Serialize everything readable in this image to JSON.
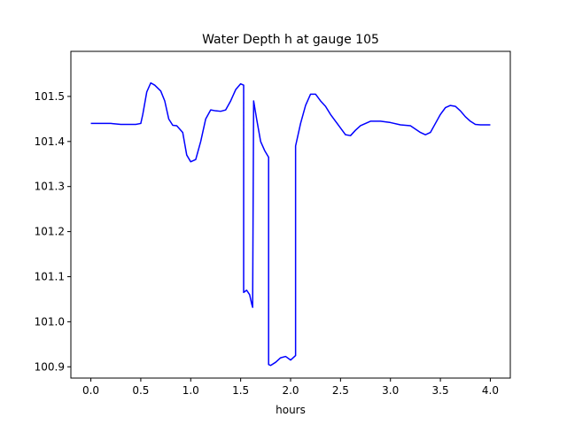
{
  "chart_data": {
    "type": "line",
    "title": "Water Depth h at gauge 105",
    "xlabel": "hours",
    "ylabel": "",
    "xlim": [
      -0.2,
      4.2
    ],
    "ylim": [
      100.875,
      101.6
    ],
    "x_ticks": [
      0.0,
      0.5,
      1.0,
      1.5,
      2.0,
      2.5,
      3.0,
      3.5,
      4.0
    ],
    "x_tick_labels": [
      "0.0",
      "0.5",
      "1.0",
      "1.5",
      "2.0",
      "2.5",
      "3.0",
      "3.5",
      "4.0"
    ],
    "y_ticks": [
      100.9,
      101.0,
      101.1,
      101.2,
      101.3,
      101.4,
      101.5
    ],
    "y_tick_labels": [
      "100.9",
      "101.0",
      "101.1",
      "101.2",
      "101.3",
      "101.4",
      "101.5"
    ],
    "grid": false,
    "series": [
      {
        "color": "#0000ff",
        "x": [
          0.0,
          0.2,
          0.3,
          0.45,
          0.5,
          0.52,
          0.56,
          0.6,
          0.64,
          0.7,
          0.74,
          0.78,
          0.82,
          0.86,
          0.92,
          0.96,
          1.0,
          1.05,
          1.1,
          1.15,
          1.2,
          1.25,
          1.3,
          1.35,
          1.4,
          1.45,
          1.5,
          1.53,
          1.53,
          1.56,
          1.59,
          1.61,
          1.62,
          1.63,
          1.66,
          1.7,
          1.74,
          1.78,
          1.78,
          1.8,
          1.85,
          1.9,
          1.95,
          2.0,
          2.05,
          2.05,
          2.1,
          2.15,
          2.2,
          2.25,
          2.3,
          2.35,
          2.4,
          2.45,
          2.5,
          2.55,
          2.6,
          2.65,
          2.7,
          2.8,
          2.9,
          3.0,
          3.1,
          3.2,
          3.3,
          3.35,
          3.4,
          3.45,
          3.5,
          3.55,
          3.6,
          3.65,
          3.7,
          3.75,
          3.8,
          3.85,
          3.9,
          3.95,
          4.0
        ],
        "y": [
          101.44,
          101.44,
          101.438,
          101.438,
          101.44,
          101.46,
          101.51,
          101.53,
          101.525,
          101.512,
          101.49,
          101.45,
          101.436,
          101.435,
          101.42,
          101.37,
          101.355,
          101.36,
          101.4,
          101.45,
          101.47,
          101.468,
          101.467,
          101.47,
          101.49,
          101.515,
          101.528,
          101.525,
          101.065,
          101.07,
          101.06,
          101.04,
          101.032,
          101.49,
          101.45,
          101.4,
          101.38,
          101.365,
          100.905,
          100.903,
          100.91,
          100.92,
          100.923,
          100.915,
          100.925,
          101.39,
          101.44,
          101.48,
          101.505,
          101.505,
          101.49,
          101.478,
          101.46,
          101.445,
          101.43,
          101.415,
          101.413,
          101.425,
          101.435,
          101.445,
          101.445,
          101.442,
          101.437,
          101.435,
          101.42,
          101.415,
          101.42,
          101.44,
          101.46,
          101.475,
          101.48,
          101.478,
          101.468,
          101.455,
          101.445,
          101.438,
          101.437,
          101.437,
          101.437
        ]
      }
    ]
  }
}
